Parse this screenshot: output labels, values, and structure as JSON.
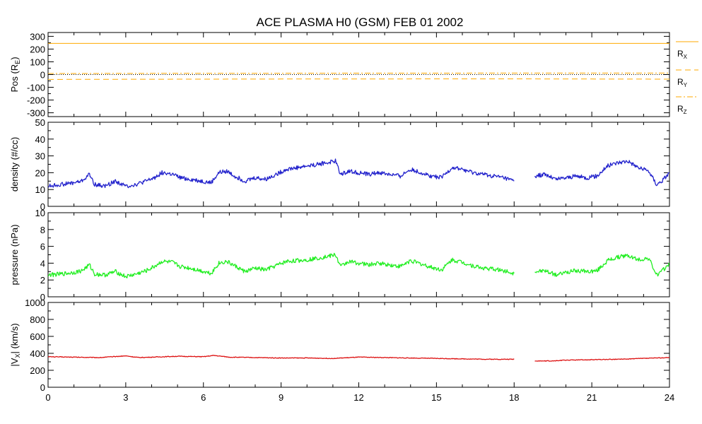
{
  "title": "ACE PLASMA H0 (GSM)   FEB 01 2002",
  "x_ticks": [
    "0",
    "3",
    "6",
    "9",
    "12",
    "15",
    "18",
    "21",
    "24"
  ],
  "chart_data": [
    {
      "type": "line",
      "panel": "position",
      "ylabel": "Pos (R",
      "ylabel_sub": "E",
      "ylabel_end": ")",
      "ylim": [
        -330,
        330
      ],
      "yticks": [
        300,
        200,
        100,
        0,
        -100,
        -200,
        -300
      ],
      "xlim": [
        0,
        24
      ],
      "reference_line": 0,
      "colors": {
        "series": "#ffaa00",
        "reference": "#000000"
      },
      "series": [
        {
          "name": "R",
          "sub": "X",
          "dash": "solid",
          "x": [
            0,
            24
          ],
          "values": [
            245,
            245
          ]
        },
        {
          "name": "R",
          "sub": "Y",
          "dash": "dash",
          "x": [
            0,
            3,
            6,
            9,
            12,
            15,
            18,
            21,
            24
          ],
          "values": [
            -38,
            -37,
            -36,
            -35,
            -35,
            -34,
            -34,
            -35,
            -36
          ]
        },
        {
          "name": "R",
          "sub": "Z",
          "dash": "dashdot",
          "x": [
            0,
            3,
            6,
            9,
            12,
            15,
            18,
            21,
            24
          ],
          "values": [
            8,
            9,
            10,
            10,
            11,
            11,
            12,
            12,
            12
          ]
        }
      ]
    },
    {
      "type": "line",
      "panel": "density",
      "ylabel": "density (#/cc)",
      "ylim": [
        0,
        50
      ],
      "yticks": [
        50,
        40,
        30,
        20,
        10,
        0
      ],
      "xlim": [
        0,
        24
      ],
      "color": "#2222cc",
      "series": [
        {
          "x": [
            0,
            0.5,
            1.0,
            1.3,
            1.6,
            1.8,
            2.2,
            2.6,
            3.0,
            3.4,
            3.8,
            4.1,
            4.4,
            4.8,
            5.1,
            5.5,
            5.9,
            6.3,
            6.6,
            6.9,
            7.2,
            7.6,
            8.0,
            8.4,
            8.8,
            9.2,
            9.6,
            10.0,
            10.4,
            10.8,
            11.1,
            11.3,
            11.6,
            12.0,
            12.4,
            12.8,
            13.2,
            13.6,
            14.0,
            14.4,
            14.8,
            15.2,
            15.6,
            16.0,
            16.4,
            16.8,
            17.2,
            17.6,
            18.0
          ],
          "values": [
            12,
            13,
            14,
            15,
            19,
            13,
            12,
            15,
            12,
            13,
            15,
            17,
            20,
            19,
            17,
            16,
            15,
            14,
            20,
            21,
            18,
            15,
            17,
            16,
            19,
            22,
            23,
            24,
            25,
            26,
            27,
            19,
            21,
            20,
            19,
            20,
            19,
            18,
            22,
            20,
            18,
            17,
            23,
            22,
            20,
            19,
            18,
            17,
            15
          ]
        },
        {
          "x": [
            18.8,
            19.2,
            19.6,
            20.0,
            20.4,
            20.8,
            21.2,
            21.6,
            22.0,
            22.4,
            22.8,
            23.2,
            23.5,
            23.7,
            24.0
          ],
          "values": [
            18,
            19,
            16,
            17,
            18,
            17,
            18,
            24,
            26,
            27,
            23,
            21,
            13,
            15,
            20
          ]
        }
      ]
    },
    {
      "type": "line",
      "panel": "pressure",
      "ylabel": "pressure (nPa)",
      "ylim": [
        0,
        10
      ],
      "yticks": [
        10,
        8,
        6,
        4,
        2,
        0
      ],
      "xlim": [
        0,
        24
      ],
      "color": "#22ee22",
      "series": [
        {
          "x": [
            0,
            0.5,
            1.0,
            1.3,
            1.6,
            1.8,
            2.2,
            2.6,
            3.0,
            3.4,
            3.8,
            4.1,
            4.4,
            4.8,
            5.1,
            5.5,
            5.9,
            6.3,
            6.6,
            6.9,
            7.2,
            7.6,
            8.0,
            8.4,
            8.8,
            9.2,
            9.6,
            10.0,
            10.4,
            10.8,
            11.1,
            11.3,
            11.6,
            12.0,
            12.4,
            12.8,
            13.2,
            13.6,
            14.0,
            14.4,
            14.8,
            15.2,
            15.6,
            16.0,
            16.4,
            16.8,
            17.2,
            17.6,
            18.0
          ],
          "values": [
            2.6,
            2.7,
            2.9,
            3.1,
            3.8,
            2.7,
            2.6,
            3.0,
            2.4,
            2.7,
            3.1,
            3.6,
            4.2,
            4.1,
            3.6,
            3.4,
            3.1,
            2.8,
            4.0,
            4.2,
            3.7,
            3.0,
            3.4,
            3.2,
            3.7,
            4.2,
            4.3,
            4.4,
            4.6,
            4.8,
            5.0,
            3.6,
            4.2,
            4.0,
            3.8,
            4.0,
            3.8,
            3.6,
            4.3,
            3.9,
            3.5,
            3.2,
            4.4,
            4.1,
            3.7,
            3.4,
            3.3,
            3.1,
            2.8
          ]
        },
        {
          "x": [
            18.8,
            19.2,
            19.6,
            20.0,
            20.4,
            20.8,
            21.2,
            21.6,
            22.0,
            22.4,
            22.8,
            23.2,
            23.5,
            23.7,
            24.0
          ],
          "values": [
            3.0,
            3.1,
            2.6,
            2.9,
            3.1,
            3.0,
            3.1,
            4.3,
            4.7,
            4.9,
            4.4,
            4.6,
            2.6,
            3.0,
            4.0
          ]
        }
      ]
    },
    {
      "type": "line",
      "panel": "velocity",
      "ylabel": "|V",
      "ylabel_sub": "X",
      "ylabel_end": "| (km/s)",
      "ylim": [
        0,
        1000
      ],
      "yticks": [
        1000,
        800,
        600,
        400,
        200,
        0
      ],
      "xlim": [
        0,
        24
      ],
      "color": "#dd1111",
      "series": [
        {
          "x": [
            0,
            1,
            2,
            3,
            3.5,
            4,
            5,
            6,
            6.4,
            7,
            8,
            9,
            10,
            11,
            12,
            13,
            14,
            15,
            16,
            17,
            18
          ],
          "values": [
            360,
            355,
            350,
            370,
            350,
            355,
            365,
            360,
            375,
            355,
            350,
            345,
            345,
            340,
            355,
            350,
            345,
            340,
            335,
            330,
            330
          ]
        },
        {
          "x": [
            18.8,
            19.5,
            20,
            21,
            22,
            23,
            24
          ],
          "values": [
            310,
            310,
            320,
            325,
            330,
            340,
            350
          ]
        }
      ]
    }
  ]
}
